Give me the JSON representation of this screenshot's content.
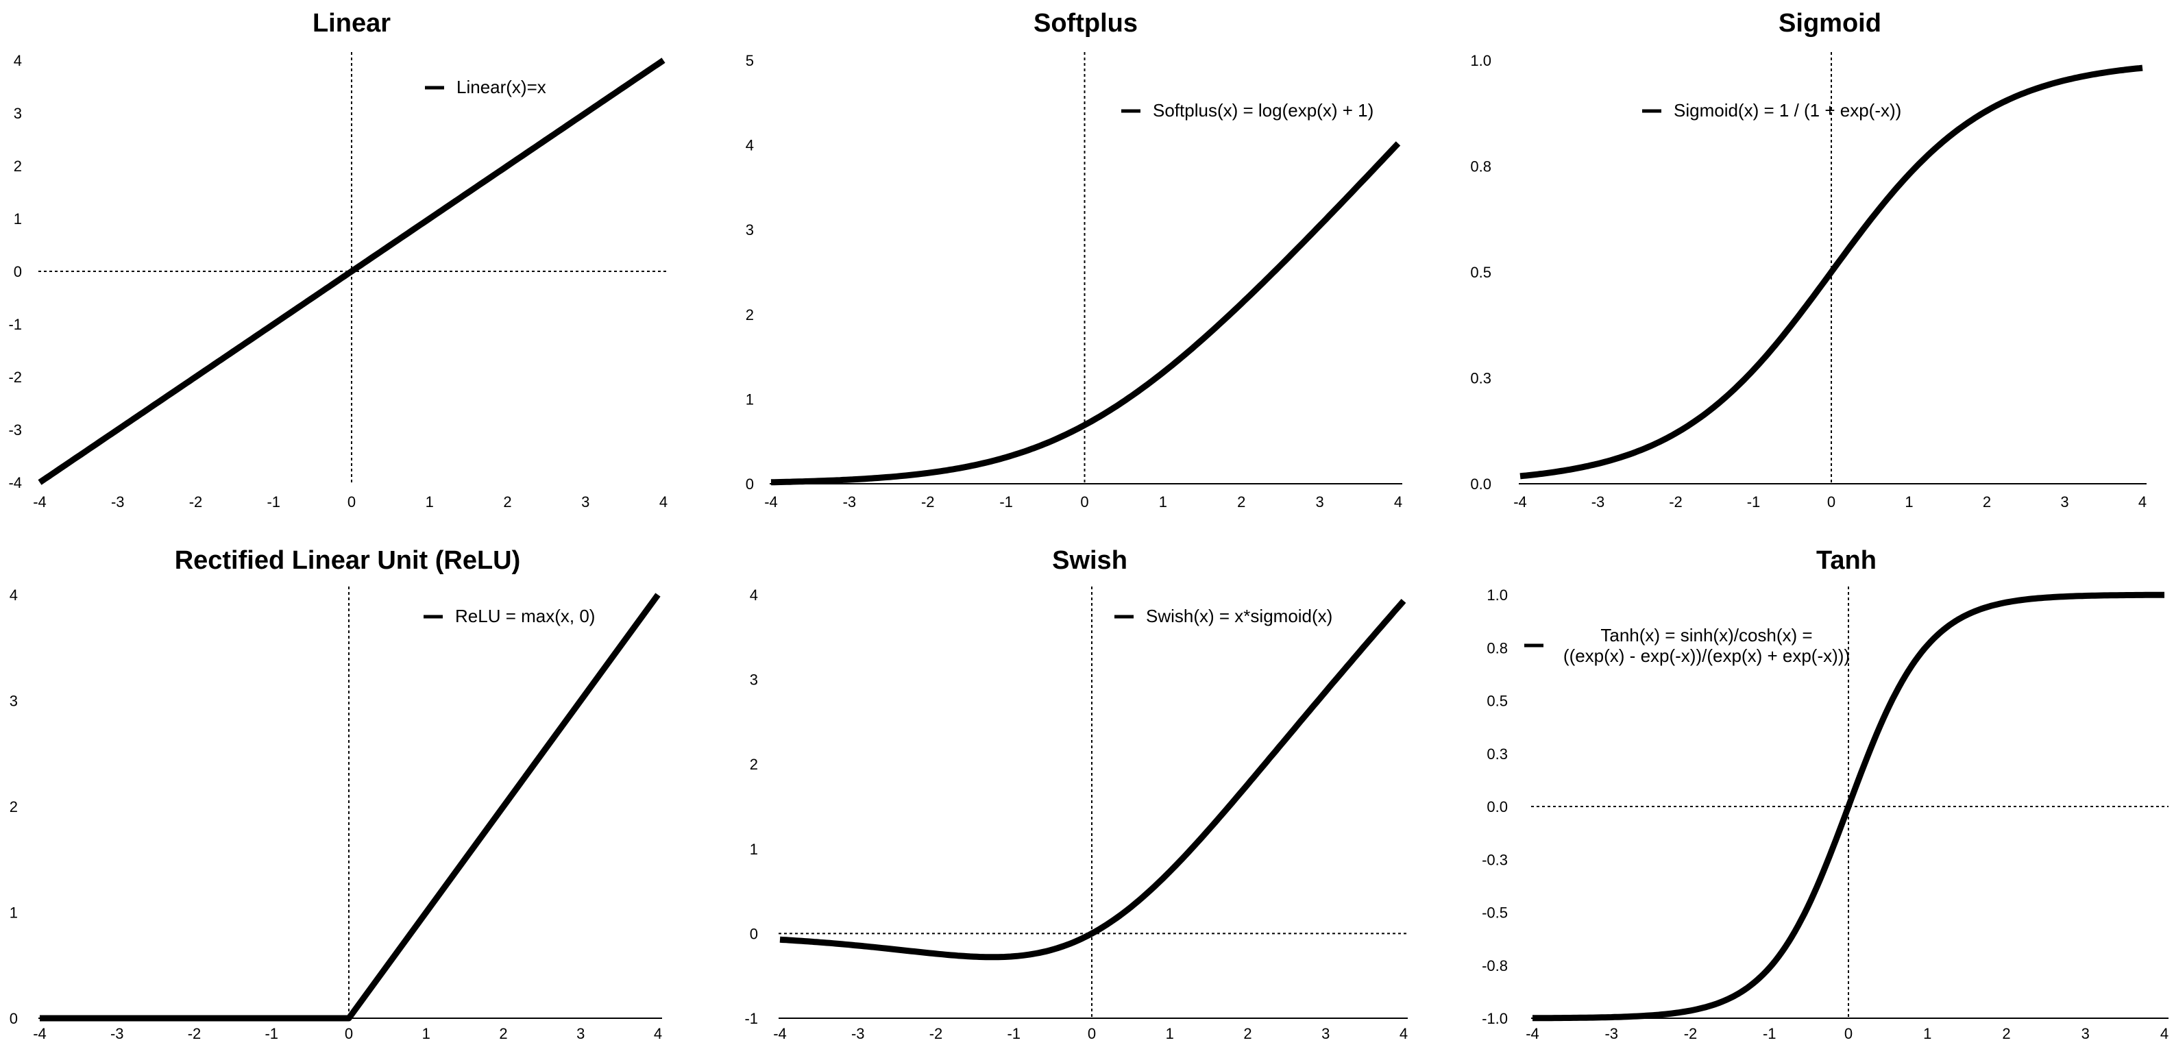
{
  "chart_data": [
    {
      "id": "linear",
      "type": "line",
      "function": "linear",
      "title": "Linear",
      "legend": [
        "Linear(x)=x"
      ],
      "xlim": [
        -4,
        4
      ],
      "ylim": [
        -4,
        4
      ],
      "xticks": [
        -4,
        -3,
        -2,
        -1,
        0,
        1,
        2,
        3,
        4
      ],
      "yticks": [
        "4",
        "3",
        "2",
        "1",
        "0",
        "-1",
        "-2",
        "-3",
        "-4"
      ],
      "ytick_values": [
        4,
        3,
        2,
        1,
        0,
        -1,
        -2,
        -3,
        -4
      ],
      "zero_vline": true,
      "zero_hline": true,
      "baseline": "none",
      "x": [
        -4,
        4
      ],
      "y": [
        -4,
        4
      ]
    },
    {
      "id": "softplus",
      "type": "line",
      "function": "softplus",
      "title": "Softplus",
      "legend": [
        "Softplus(x) = log(exp(x) + 1)"
      ],
      "xlim": [
        -4,
        4
      ],
      "ylim": [
        0,
        5
      ],
      "xticks": [
        -4,
        -3,
        -2,
        -1,
        0,
        1,
        2,
        3,
        4
      ],
      "yticks": [
        "5",
        "4",
        "3",
        "2",
        "1",
        "0"
      ],
      "ytick_values": [
        5,
        4,
        3,
        2,
        1,
        0
      ],
      "zero_vline": true,
      "zero_hline": false,
      "baseline": "solid",
      "x": [
        -4,
        -3,
        -2,
        -1,
        0,
        1,
        2,
        3,
        4
      ],
      "y": [
        0.018,
        0.049,
        0.127,
        0.313,
        0.693,
        1.313,
        2.127,
        3.049,
        4.018
      ]
    },
    {
      "id": "sigmoid",
      "type": "line",
      "function": "sigmoid",
      "title": "Sigmoid",
      "legend": [
        "Sigmoid(x) = 1 / (1 + exp(-x))"
      ],
      "xlim": [
        -4,
        4
      ],
      "ylim": [
        0,
        1
      ],
      "xticks": [
        -4,
        -3,
        -2,
        -1,
        0,
        1,
        2,
        3,
        4
      ],
      "yticks": [
        "1.0",
        "0.8",
        "0.5",
        "0.3",
        "0.0"
      ],
      "ytick_values": [
        1.0,
        0.75,
        0.5,
        0.25,
        0.0
      ],
      "zero_vline": true,
      "zero_hline": false,
      "baseline": "solid",
      "x": [
        -4,
        -3,
        -2,
        -1,
        0,
        1,
        2,
        3,
        4
      ],
      "y": [
        0.018,
        0.047,
        0.119,
        0.269,
        0.5,
        0.731,
        0.881,
        0.953,
        0.982
      ]
    },
    {
      "id": "relu",
      "type": "line",
      "function": "relu",
      "title": "Rectified Linear Unit (ReLU)",
      "legend": [
        "ReLU = max(x, 0)"
      ],
      "xlim": [
        -4,
        4
      ],
      "ylim": [
        0,
        4
      ],
      "xticks": [
        -4,
        -3,
        -2,
        -1,
        0,
        1,
        2,
        3,
        4
      ],
      "yticks": [
        "4",
        "3",
        "2",
        "1",
        "0"
      ],
      "ytick_values": [
        4,
        3,
        2,
        1,
        0
      ],
      "zero_vline": true,
      "zero_hline": false,
      "baseline": "solid",
      "x": [
        -4,
        0,
        4
      ],
      "y": [
        0,
        0,
        4
      ]
    },
    {
      "id": "swish",
      "type": "line",
      "function": "swish",
      "title": "Swish",
      "legend": [
        "Swish(x) = x*sigmoid(x)"
      ],
      "xlim": [
        -4,
        4
      ],
      "ylim": [
        -1,
        4
      ],
      "xticks": [
        -4,
        -3,
        -2,
        -1,
        0,
        1,
        2,
        3,
        4
      ],
      "yticks": [
        "4",
        "3",
        "2",
        "1",
        "0",
        "-1"
      ],
      "ytick_values": [
        4,
        3,
        2,
        1,
        0,
        -1
      ],
      "zero_vline": true,
      "zero_hline": true,
      "baseline": "solid",
      "x": [
        -4,
        -3,
        -2,
        -1.28,
        -1,
        0,
        1,
        2,
        3,
        4
      ],
      "y": [
        -0.072,
        -0.142,
        -0.238,
        -0.278,
        -0.269,
        0,
        0.731,
        1.762,
        2.858,
        3.928
      ]
    },
    {
      "id": "tanh",
      "type": "line",
      "function": "tanh",
      "title": "Tanh",
      "legend": [
        "Tanh(x) = sinh(x)/cosh(x) =",
        "((exp(x) - exp(-x))/(exp(x) + exp(-x)))"
      ],
      "xlim": [
        -4,
        4
      ],
      "ylim": [
        -1,
        1
      ],
      "xticks": [
        -4,
        -3,
        -2,
        -1,
        0,
        1,
        2,
        3,
        4
      ],
      "yticks": [
        "1.0",
        "0.8",
        "0.5",
        "0.3",
        "0.0",
        "-0.3",
        "-0.5",
        "-0.8",
        "-1.0"
      ],
      "ytick_values": [
        1.0,
        0.75,
        0.5,
        0.25,
        0.0,
        -0.25,
        -0.5,
        -0.75,
        -1.0
      ],
      "zero_vline": true,
      "zero_hline": true,
      "baseline": "solid",
      "x": [
        -4,
        -3,
        -2,
        -1,
        0,
        1,
        2,
        3,
        4
      ],
      "y": [
        -0.999,
        -0.995,
        -0.964,
        -0.762,
        0,
        0.762,
        0.964,
        0.995,
        0.999
      ]
    }
  ]
}
